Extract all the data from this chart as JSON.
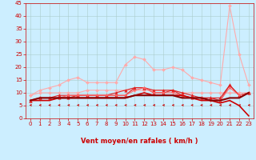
{
  "xlabel": "Vent moyen/en rafales ( km/h )",
  "bg_color": "#cceeff",
  "grid_color": "#aacccc",
  "xlim": [
    -0.5,
    23.5
  ],
  "ylim": [
    0,
    45
  ],
  "xticks": [
    0,
    1,
    2,
    3,
    4,
    5,
    6,
    7,
    8,
    9,
    10,
    11,
    12,
    13,
    14,
    15,
    16,
    17,
    18,
    19,
    20,
    21,
    22,
    23
  ],
  "yticks": [
    0,
    5,
    10,
    15,
    20,
    25,
    30,
    35,
    40,
    45
  ],
  "series": [
    {
      "x": [
        0,
        1,
        2,
        3,
        4,
        5,
        6,
        7,
        8,
        9,
        10,
        11,
        12,
        13,
        14,
        15,
        16,
        17,
        18,
        19,
        20,
        21,
        22,
        23
      ],
      "y": [
        9,
        10,
        10,
        10,
        10,
        10,
        11,
        11,
        11,
        11,
        11,
        11,
        11,
        11,
        11,
        11,
        10,
        10,
        10,
        10,
        10,
        10,
        10,
        10
      ],
      "color": "#ffaaaa",
      "marker": "D",
      "markersize": 2,
      "linewidth": 0.8,
      "zorder": 2
    },
    {
      "x": [
        0,
        1,
        2,
        3,
        4,
        5,
        6,
        7,
        8,
        9,
        10,
        11,
        12,
        13,
        14,
        15,
        16,
        17,
        18,
        19,
        20,
        21,
        22,
        23
      ],
      "y": [
        9,
        11,
        12,
        13,
        15,
        16,
        14,
        14,
        14,
        14,
        21,
        24,
        23,
        19,
        19,
        20,
        19,
        16,
        15,
        14,
        13,
        44,
        25,
        13
      ],
      "color": "#ffaaaa",
      "marker": "D",
      "markersize": 2,
      "linewidth": 0.8,
      "zorder": 2
    },
    {
      "x": [
        0,
        1,
        2,
        3,
        4,
        5,
        6,
        7,
        8,
        9,
        10,
        11,
        12,
        13,
        14,
        15,
        16,
        17,
        18,
        19,
        20,
        21,
        22,
        23
      ],
      "y": [
        7,
        8,
        8,
        8,
        8,
        9,
        9,
        9,
        9,
        10,
        11,
        12,
        12,
        11,
        11,
        11,
        10,
        9,
        8,
        8,
        8,
        13,
        9,
        10
      ],
      "color": "#dd2222",
      "marker": "^",
      "markersize": 2.5,
      "linewidth": 0.8,
      "zorder": 3
    },
    {
      "x": [
        0,
        1,
        2,
        3,
        4,
        5,
        6,
        7,
        8,
        9,
        10,
        11,
        12,
        13,
        14,
        15,
        16,
        17,
        18,
        19,
        20,
        21,
        22,
        23
      ],
      "y": [
        7,
        8,
        8,
        9,
        9,
        9,
        9,
        9,
        9,
        9,
        9,
        12,
        12,
        10,
        10,
        11,
        9,
        8,
        8,
        8,
        7,
        13,
        9,
        10
      ],
      "color": "#dd2222",
      "marker": "^",
      "markersize": 2.5,
      "linewidth": 0.8,
      "zorder": 3
    },
    {
      "x": [
        0,
        1,
        2,
        3,
        4,
        5,
        6,
        7,
        8,
        9,
        10,
        11,
        12,
        13,
        14,
        15,
        16,
        17,
        18,
        19,
        20,
        21,
        22,
        23
      ],
      "y": [
        7,
        8,
        8,
        8,
        9,
        9,
        9,
        9,
        9,
        9,
        9,
        11,
        12,
        10,
        10,
        10,
        9,
        8,
        8,
        7,
        7,
        12,
        9,
        10
      ],
      "color": "#ff6666",
      "marker": "v",
      "markersize": 2,
      "linewidth": 0.8,
      "zorder": 3
    },
    {
      "x": [
        0,
        1,
        2,
        3,
        4,
        5,
        6,
        7,
        8,
        9,
        10,
        11,
        12,
        13,
        14,
        15,
        16,
        17,
        18,
        19,
        20,
        21,
        22,
        23
      ],
      "y": [
        7,
        7,
        7,
        8,
        8,
        8,
        8,
        8,
        8,
        8,
        8,
        9,
        10,
        9,
        9,
        9,
        9,
        8,
        7,
        7,
        6,
        7,
        5,
        1
      ],
      "color": "#cc0000",
      "marker": null,
      "markersize": 0,
      "linewidth": 1.2,
      "zorder": 4
    },
    {
      "x": [
        0,
        1,
        2,
        3,
        4,
        5,
        6,
        7,
        8,
        9,
        10,
        11,
        12,
        13,
        14,
        15,
        16,
        17,
        18,
        19,
        20,
        21,
        22,
        23
      ],
      "y": [
        7,
        8,
        8,
        8,
        8,
        8,
        8,
        8,
        8,
        8,
        8,
        9,
        9,
        9,
        9,
        9,
        8,
        8,
        8,
        7,
        7,
        8,
        8,
        10
      ],
      "color": "#880000",
      "marker": null,
      "markersize": 0,
      "linewidth": 1.5,
      "zorder": 5
    }
  ],
  "arrow_color": "#cc0000",
  "arrow_count": 24,
  "tick_color": "#cc0000",
  "tick_fontsize": 5,
  "xlabel_fontsize": 6,
  "xlabel_color": "#cc0000"
}
